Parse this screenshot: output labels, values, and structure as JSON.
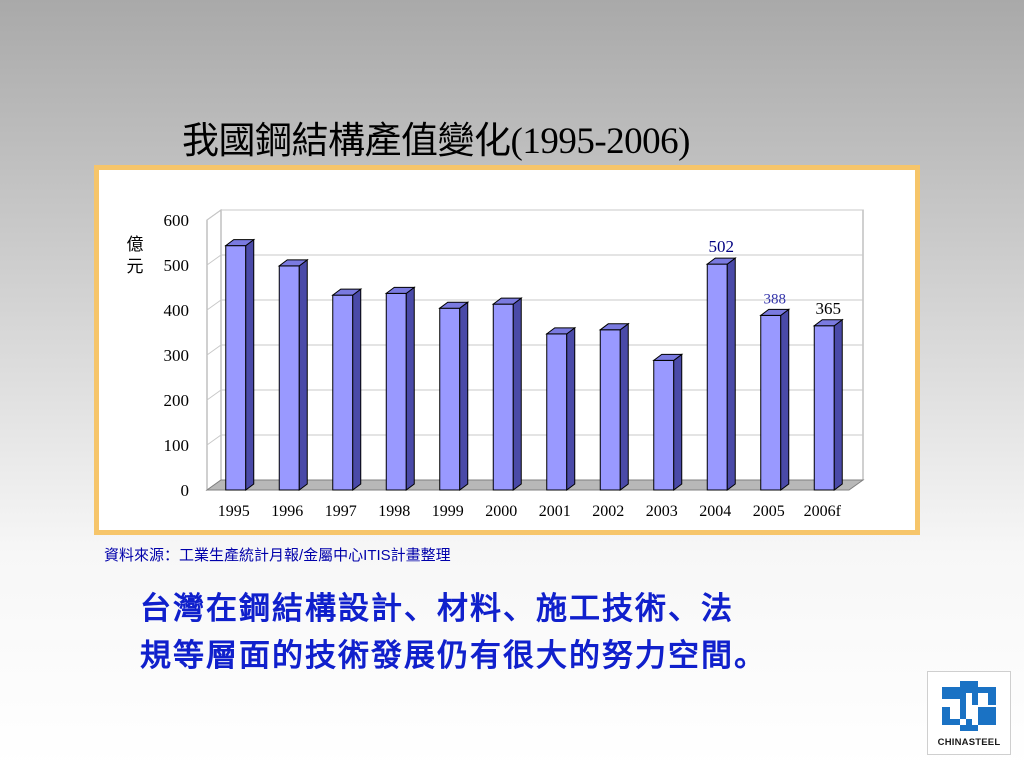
{
  "slide": {
    "title": "我國鋼結構產值變化(1995-2006)",
    "source": "資料來源：工業生產統計月報/金屬中心ITIS計畫整理",
    "conclusion_lines": [
      "台灣在鋼結構設計、材料、施工技術、法",
      "規等層面的技術發展仍有很大的努力空間。"
    ]
  },
  "logo": {
    "text": "CHINASTEEL",
    "color": "#1a72c4"
  },
  "chart_data": {
    "type": "bar",
    "categories": [
      "1995",
      "1996",
      "1997",
      "1998",
      "1999",
      "2000",
      "2001",
      "2002",
      "2003",
      "2004",
      "2005",
      "2006f"
    ],
    "values": [
      543,
      498,
      433,
      437,
      404,
      413,
      347,
      356,
      288,
      502,
      388,
      365
    ],
    "title": "我國鋼結構產值變化(1995-2006)",
    "xlabel": "",
    "ylabel": "億元",
    "ylim": [
      0,
      600
    ],
    "yticks": [
      0,
      100,
      200,
      300,
      400,
      500,
      600
    ],
    "grid": true,
    "style": "3d-column",
    "bar_color": "#9999ff",
    "data_labels": [
      {
        "category": "2004",
        "text": "502",
        "color": "#000080"
      },
      {
        "category": "2005",
        "text": "388",
        "color": "#3333aa"
      },
      {
        "category": "2006f",
        "text": "365",
        "color": "#000000"
      }
    ]
  }
}
